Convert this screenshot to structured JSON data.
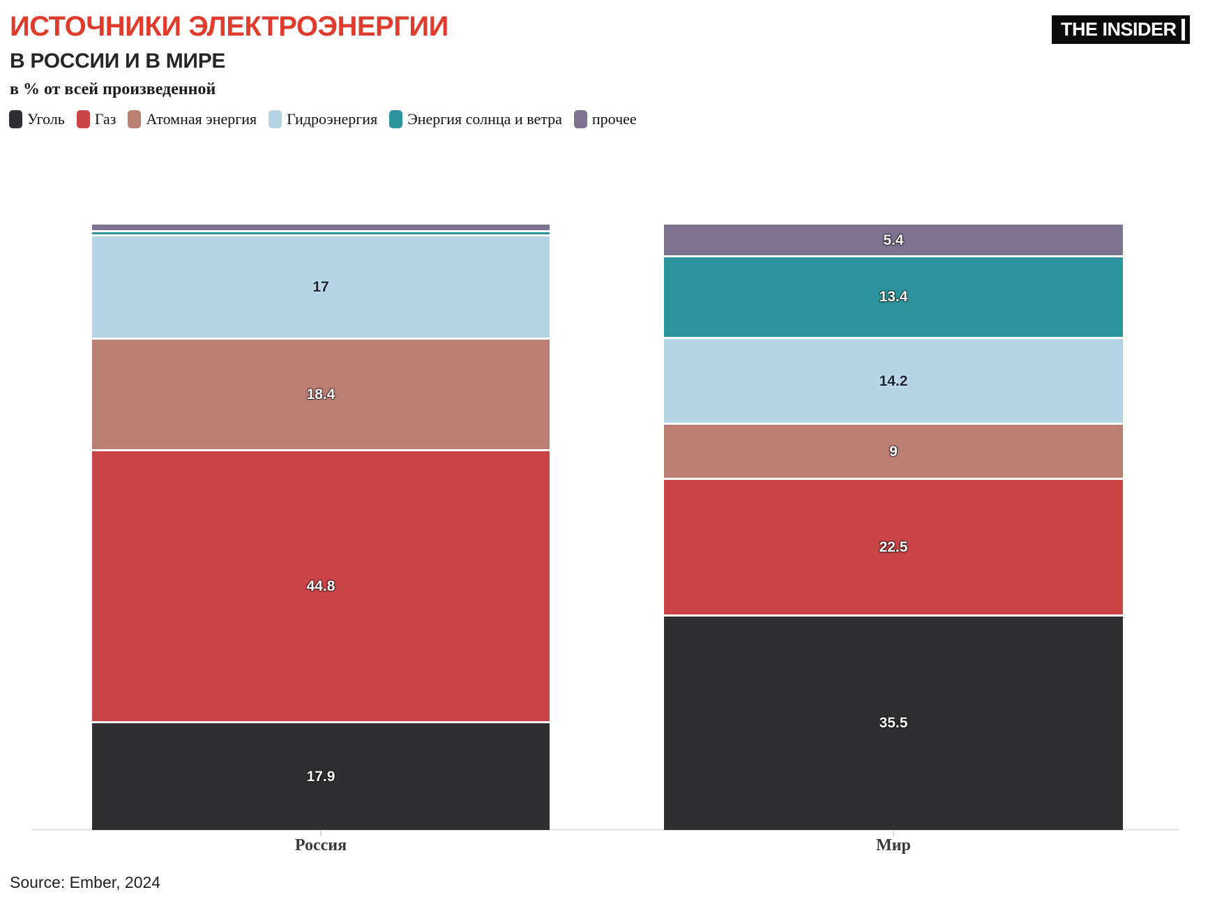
{
  "header": {
    "title": "ИСТОЧНИКИ ЭЛЕКТРОЭНЕРГИИ",
    "subtitle": "В РОССИИ И В МИРЕ",
    "unit_note": "в % от всей произведенной",
    "logo_text": "THE INSIDER"
  },
  "source": "Source: Ember, 2024",
  "colors": {
    "title_accent": "#df3c2d",
    "logo_background": "#0b0b0b",
    "baseline": "#e8e8e8"
  },
  "chart_data": {
    "type": "bar",
    "subtype": "stacked-vertical",
    "title": "ИСТОЧНИКИ ЭЛЕКТРОЭНЕРГИИ В РОССИИ И В МИРЕ",
    "ylabel": "в % от всей произведенной",
    "ylim": [
      0,
      100
    ],
    "grid": false,
    "legend_position": "top",
    "categories": [
      "Россия",
      "Мир"
    ],
    "stack_order": "bottom-to-top",
    "series": [
      {
        "name": "Уголь",
        "color": "#2f2f31",
        "values": [
          17.9,
          35.5
        ],
        "labels": [
          "17.9",
          "35.5"
        ],
        "label_style": "light"
      },
      {
        "name": "Газ",
        "color": "#c94547",
        "values": [
          44.8,
          22.5
        ],
        "labels": [
          "44.8",
          "22.5"
        ],
        "label_style": "light"
      },
      {
        "name": "Атомная энергия",
        "color": "#bc7f74",
        "values": [
          18.4,
          9
        ],
        "labels": [
          "18.4",
          "9"
        ],
        "label_style": "light"
      },
      {
        "name": "Гидроэнергия",
        "color": "#b5d5e5",
        "values": [
          17,
          14.2
        ],
        "labels": [
          "17",
          "14.2"
        ],
        "label_style": "dark"
      },
      {
        "name": "Энергия солнца и ветра",
        "color": "#2d949d",
        "values": [
          0.6,
          13.4
        ],
        "labels": [
          "",
          "13.4"
        ],
        "label_style": "light"
      },
      {
        "name": "прочее",
        "color": "#7d738e",
        "values": [
          1.3,
          5.4
        ],
        "labels": [
          "",
          "5.4"
        ],
        "label_style": "light"
      }
    ]
  }
}
